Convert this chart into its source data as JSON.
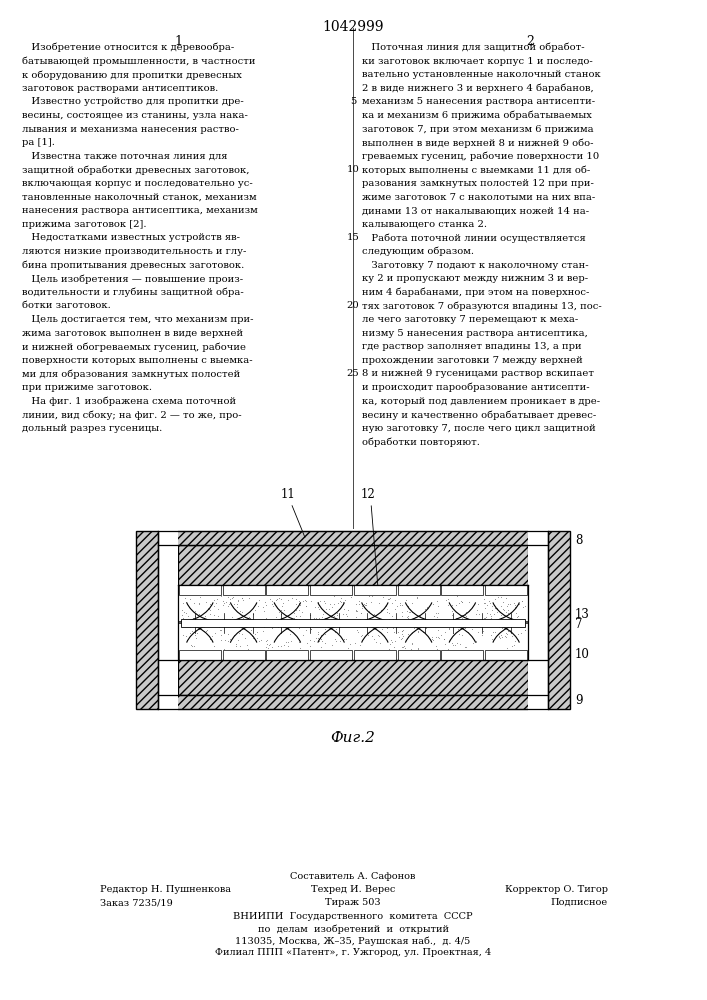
{
  "patent_number": "1042999",
  "background_color": "#ffffff",
  "text_color": "#000000",
  "col1_text_lines": [
    "   Изобретение относится к деревообра-",
    "батывающей промышленности, в частности",
    "к оборудованию для пропитки древесных",
    "заготовок растворами антисептиков.",
    "   Известно устройство для пропитки дре-",
    "весины, состоящее из станины, узла нака-",
    "лывания и механизма нанесения раство-",
    "ра [1].",
    "   Известна также поточная линия для",
    "защитной обработки древесных заготовок,",
    "включающая корпус и последовательно ус-",
    "тановленные наколочный станок, механизм",
    "нанесения раствора антисептика, механизм",
    "прижима заготовок [2].",
    "   Недостатками известных устройств яв-",
    "ляются низкие производительность и глу-",
    "бина пропитывания древесных заготовок.",
    "   Цель изобретения — повышение произ-",
    "водительности и глубины защитной обра-",
    "ботки заготовок.",
    "   Цель достигается тем, что механизм при-",
    "жима заготовок выполнен в виде верхней",
    "и нижней обогреваемых гусениц, рабочие",
    "поверхности которых выполнены с выемка-",
    "ми для образования замкнутых полостей",
    "при прижиме заготовок.",
    "   На фиг. 1 изображена схема поточной",
    "линии, вид сбоку; на фиг. 2 — то же, про-",
    "дольный разрез гусеницы."
  ],
  "col2_text_lines": [
    "   Поточная линия для защитной обработ-",
    "ки заготовок включает корпус 1 и последо-",
    "вательно установленные наколочный станок",
    "2 в виде нижнего 3 и верхнего 4 барабанов,",
    "механизм 5 нанесения раствора антисепти-",
    "ка и механизм 6 прижима обрабатываемых",
    "заготовок 7, при этом механизм 6 прижима",
    "выполнен в виде верхней 8 и нижней 9 обо-",
    "греваемых гусениц, рабочие поверхности 10",
    "которых выполнены с выемками 11 для об-",
    "разования замкнутых полостей 12 при при-",
    "жиме заготовок 7 с наколотыми на них впа-",
    "динами 13 от накалывающих ножей 14 на-",
    "калывающего станка 2.",
    "   Работа поточной линии осуществляется",
    "следующим образом.",
    "   Заготовку 7 подают к наколочному стан-",
    "ку 2 и пропускают между нижним 3 и вер-",
    "ним 4 барабанами, при этом на поверхнос-",
    "тях заготовок 7 образуются впадины 13, пос-",
    "ле чего заготовку 7 перемещают к меха-",
    "низму 5 нанесения раствора антисептика,",
    "где раствор заполняет впадины 13, а при",
    "прохождении заготовки 7 между верхней",
    "8 и нижней 9 гусеницами раствор вскипает",
    "и происходит парообразование антисепти-",
    "ка, который под давлением проникает в дре-",
    "весину и качественно обрабатывает древес-",
    "ную заготовку 7, после чего цикл защитной",
    "обработки повторяют."
  ],
  "line_numbers_idx": [
    4,
    9,
    14,
    19,
    24
  ],
  "line_numbers_val": [
    "5",
    "10",
    "15",
    "20",
    "25"
  ],
  "fig_label": "Фиг.2",
  "footer_composer": "Составитель А. Сафонов",
  "footer_editor": "Редактор Н. Пушненкова",
  "footer_techred": "Техред И. Верес",
  "footer_corrector": "Корректор О. Тигор",
  "footer_order": "Заказ 7235/19",
  "footer_tirazh": "Тираж 503",
  "footer_podpisnoe": "Подписное",
  "footer_vniip": "ВНИИПИ  Государственного  комитета  СССР",
  "footer_delam": "по  делам  изобретений  и  открытий",
  "footer_addr": "113035, Москва, Ж–35, Раушская наб.,  д. 4/5",
  "footer_filial": "Филиал ППП «Патент», г. Ужгород, ул. Проектная, 4",
  "col1_label": "1",
  "col2_label": "2",
  "hatch_fill": "#c8c8c8"
}
